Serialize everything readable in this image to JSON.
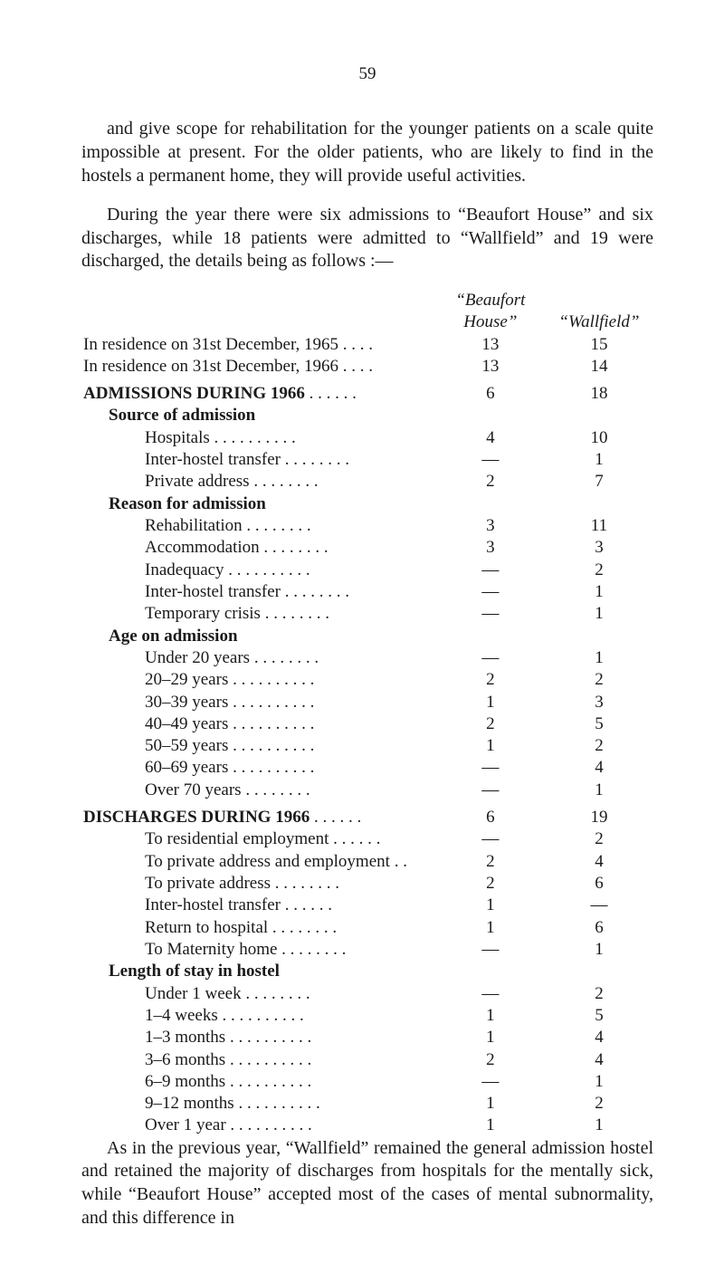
{
  "page_number": "59",
  "paragraphs": {
    "p1": "and give scope for rehabilitation for the younger patients on a scale quite impossible at present. For the older patients, who are likely to find in the hostels a permanent home, they will provide useful activities.",
    "p2": "During the year there were six admissions to “Beaufort House” and six discharges, while 18 patients were admitted to “Wallfield” and 19 were discharged, the details being as follows :—",
    "closing": "As in the previous year, “Wallfield” remained the general admission hostel and retained the majority of discharges from hospitals for the mentally sick, while “Beaufort House” accepted most of the cases of mental subnormality, and this difference in"
  },
  "headers": {
    "col1a": "“Beaufort",
    "col1b": "House”",
    "col2": "“Wallfield”"
  },
  "rows": [
    {
      "label": "In residence on 31st December, 1965",
      "dots": "    . .      . .",
      "c1": "13",
      "c2": "15",
      "indent": 0,
      "bold": false
    },
    {
      "label": "In residence on 31st December, 1966",
      "dots": "    . .      . .",
      "c1": "13",
      "c2": "14",
      "indent": 0,
      "bold": false
    },
    {
      "gap": true
    },
    {
      "label": "ADMISSIONS DURING 1966",
      "dots": "      . .      . .      . .",
      "c1": "6",
      "c2": "18",
      "indent": 0,
      "bold": true
    },
    {
      "label": "Source of admission",
      "dots": "",
      "c1": "",
      "c2": "",
      "indent": 1,
      "bold": true
    },
    {
      "label": "Hospitals  . .",
      "dots": "      . .      . .      . .      . .",
      "c1": "4",
      "c2": "10",
      "indent": 2,
      "bold": false
    },
    {
      "label": "Inter-hostel transfer . .",
      "dots": "      . .      . .      . .",
      "c1": "—",
      "c2": "1",
      "indent": 2,
      "bold": false
    },
    {
      "label": "Private address",
      "dots": "      . .      . .      . .      . .",
      "c1": "2",
      "c2": "7",
      "indent": 2,
      "bold": false
    },
    {
      "label": "Reason for admission",
      "dots": "",
      "c1": "",
      "c2": "",
      "indent": 1,
      "bold": true
    },
    {
      "label": "Rehabilitation",
      "dots": "      . .      . .      . .      . .",
      "c1": "3",
      "c2": "11",
      "indent": 2,
      "bold": false
    },
    {
      "label": "Accommodation",
      "dots": "      . .      . .      . .      . .",
      "c1": "3",
      "c2": "3",
      "indent": 2,
      "bold": false
    },
    {
      "label": "Inadequacy  . .",
      "dots": "      . .      . .      . .      . .",
      "c1": "—",
      "c2": "2",
      "indent": 2,
      "bold": false
    },
    {
      "label": "Inter-hostel transfer . .",
      "dots": "      . .      . .      . .",
      "c1": "—",
      "c2": "1",
      "indent": 2,
      "bold": false
    },
    {
      "label": "Temporary crisis",
      "dots": "      . .      . .      . .      . .",
      "c1": "—",
      "c2": "1",
      "indent": 2,
      "bold": false
    },
    {
      "label": "Age on admission",
      "dots": "",
      "c1": "",
      "c2": "",
      "indent": 1,
      "bold": true
    },
    {
      "label": "Under 20 years",
      "dots": "      . .      . .      . .      . .",
      "c1": "—",
      "c2": "1",
      "indent": 2,
      "bold": false
    },
    {
      "label": "20–29 years . .",
      "dots": "      . .      . .      . .      . .",
      "c1": "2",
      "c2": "2",
      "indent": 2,
      "bold": false
    },
    {
      "label": "30–39 years . .",
      "dots": "      . .      . .      . .      . .",
      "c1": "1",
      "c2": "3",
      "indent": 2,
      "bold": false
    },
    {
      "label": "40–49 years . .",
      "dots": "      . .      . .      . .      . .",
      "c1": "2",
      "c2": "5",
      "indent": 2,
      "bold": false
    },
    {
      "label": "50–59 years . .",
      "dots": "      . .      . .      . .      . .",
      "c1": "1",
      "c2": "2",
      "indent": 2,
      "bold": false
    },
    {
      "label": "60–69 years . .",
      "dots": "      . .      . .      . .      . .",
      "c1": "—",
      "c2": "4",
      "indent": 2,
      "bold": false
    },
    {
      "label": "Over 70 years",
      "dots": "      . .      . .      . .      . .",
      "c1": "—",
      "c2": "1",
      "indent": 2,
      "bold": false
    },
    {
      "gap": true
    },
    {
      "label": "DISCHARGES DURING 1966",
      "dots": "      . .      . .      . .",
      "c1": "6",
      "c2": "19",
      "indent": 0,
      "bold": true
    },
    {
      "label": "To residential employment . .",
      "dots": "      . .      . .",
      "c1": "—",
      "c2": "2",
      "indent": 2,
      "bold": false
    },
    {
      "label": "To private address and employment",
      "dots": "      . .",
      "c1": "2",
      "c2": "4",
      "indent": 2,
      "bold": false
    },
    {
      "label": "To private address  . .",
      "dots": "      . .      . .      . .",
      "c1": "2",
      "c2": "6",
      "indent": 2,
      "bold": false
    },
    {
      "label": "Inter-hostel transfer",
      "dots": "      . .      . .      . .",
      "c1": "1",
      "c2": "—",
      "indent": 2,
      "bold": false
    },
    {
      "label": "Return to hospital  . .",
      "dots": "      . .      . .      . .",
      "c1": "1",
      "c2": "6",
      "indent": 2,
      "bold": false
    },
    {
      "label": "To Maternity home . .",
      "dots": "      . .      . .      . .",
      "c1": "—",
      "c2": "1",
      "indent": 2,
      "bold": false
    },
    {
      "label": "Length of stay in hostel",
      "dots": "",
      "c1": "",
      "c2": "",
      "indent": 1,
      "bold": true
    },
    {
      "label": "Under 1 week",
      "dots": "      . .      . .      . .      . .",
      "c1": "—",
      "c2": "2",
      "indent": 2,
      "bold": false
    },
    {
      "label": "1–4 weeks  . .",
      "dots": "      . .      . .      . .      . .",
      "c1": "1",
      "c2": "5",
      "indent": 2,
      "bold": false
    },
    {
      "label": "1–3 months . .",
      "dots": "      . .      . .      . .      . .",
      "c1": "1",
      "c2": "4",
      "indent": 2,
      "bold": false
    },
    {
      "label": "3–6 months . .",
      "dots": "      . .      . .      . .      . .",
      "c1": "2",
      "c2": "4",
      "indent": 2,
      "bold": false
    },
    {
      "label": "6–9 months . .",
      "dots": "      . .      . .      . .      . .",
      "c1": "—",
      "c2": "1",
      "indent": 2,
      "bold": false
    },
    {
      "label": "9–12 months . .",
      "dots": "      . .      . .      . .      . .",
      "c1": "1",
      "c2": "2",
      "indent": 2,
      "bold": false
    },
    {
      "label": "Over 1 year  . .",
      "dots": "      . .      . .      . .      . .",
      "c1": "1",
      "c2": "1",
      "indent": 2,
      "bold": false
    }
  ]
}
